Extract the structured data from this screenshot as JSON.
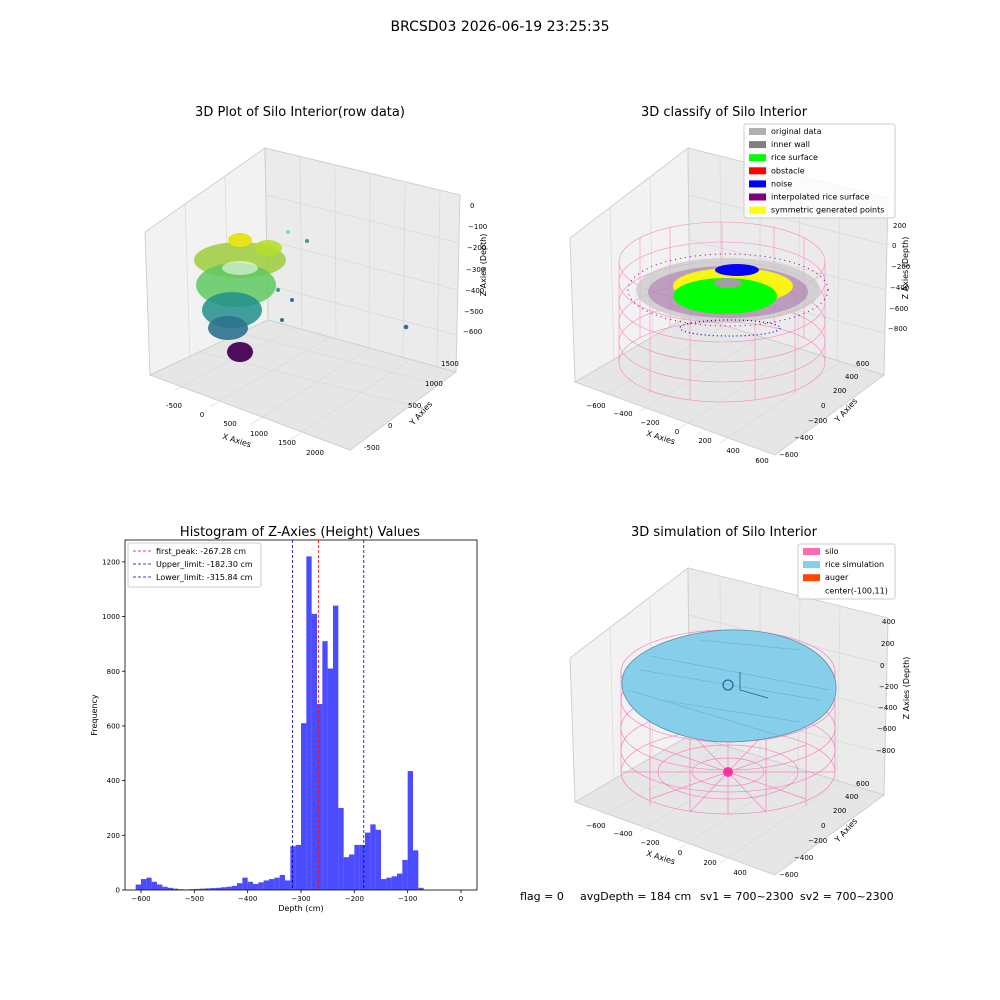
{
  "figure": {
    "suptitle": "BRCSD03 2026-06-19 23:25:35",
    "footer": {
      "flag": "flag = 0",
      "avg_depth": "avgDepth = 184 cm",
      "sv1": "sv1 = 700~2300",
      "sv2": "sv2 = 700~2300"
    }
  },
  "panels": {
    "raw": {
      "title": "3D Plot of Silo Interior(row data)",
      "xlabel": "X Axies",
      "ylabel": "Y Axies",
      "zlabel": "Z Axies (Depth)",
      "xticks": [
        "-500",
        "0",
        "500",
        "1000",
        "1500",
        "2000"
      ],
      "yticks": [
        "-500",
        "0",
        "500",
        "1000",
        "1500"
      ],
      "zticks": [
        "0",
        "−100",
        "−200",
        "−300",
        "−400",
        "−500",
        "−600"
      ]
    },
    "classify": {
      "title": "3D classify of Silo Interior",
      "xlabel": "X Axies",
      "ylabel": "Y Axies",
      "zlabel": "Z Axies (Depth)",
      "xticks": [
        "−600",
        "−400",
        "−200",
        "0",
        "200",
        "400",
        "600"
      ],
      "yticks": [
        "−600",
        "−400",
        "−200",
        "0",
        "200",
        "400",
        "600"
      ],
      "zticks": [
        "200",
        "0",
        "−200",
        "−400",
        "−600",
        "−800"
      ],
      "legend": [
        {
          "label": "original data",
          "color": "#b0b0b0"
        },
        {
          "label": "inner wall",
          "color": "#808080"
        },
        {
          "label": "rice surface",
          "color": "#00ff00"
        },
        {
          "label": "obstacle",
          "color": "#ff0000"
        },
        {
          "label": "noise",
          "color": "#0000ff"
        },
        {
          "label": "interpolated rice surface",
          "color": "#800080"
        },
        {
          "label": "symmetric generated points",
          "color": "#ffff00"
        }
      ]
    },
    "simulation": {
      "title": "3D simulation of Silo Interior",
      "xlabel": "X Axies",
      "ylabel": "Y Axies",
      "zlabel": "Z Axies (Depth)",
      "xticks": [
        "−600",
        "−400",
        "−200",
        "0",
        "200",
        "400"
      ],
      "yticks": [
        "−600",
        "−400",
        "−200",
        "0",
        "200",
        "400",
        "600"
      ],
      "zticks": [
        "400",
        "200",
        "0",
        "−200",
        "−400",
        "−600",
        "−800"
      ],
      "legend": [
        {
          "label": "silo",
          "color": "#ff69b4"
        },
        {
          "label": "rice simulation",
          "color": "#87ceeb"
        },
        {
          "label": "auger",
          "color": "#ff4500"
        },
        {
          "label": "center(-100,11)",
          "color": "none"
        }
      ]
    }
  },
  "chart_data": {
    "type": "bar",
    "title": "Histogram of Z-Axies (Height) Values",
    "xlabel": "Depth (cm)",
    "ylabel": "Frequency",
    "xlim": [
      -630,
      30
    ],
    "ylim": [
      0,
      1280
    ],
    "bar_color": "#0000ff",
    "bar_opacity": 0.7,
    "xticks": [
      -600,
      -500,
      -400,
      -300,
      -200,
      -100,
      0
    ],
    "xtick_labels": [
      "−600",
      "−500",
      "−400",
      "−300",
      "−200",
      "−100",
      "0"
    ],
    "yticks": [
      0,
      200,
      400,
      600,
      800,
      1000,
      1200
    ],
    "bins": [
      [
        -610,
        -600,
        20
      ],
      [
        -600,
        -590,
        40
      ],
      [
        -590,
        -580,
        45
      ],
      [
        -580,
        -570,
        30
      ],
      [
        -570,
        -560,
        20
      ],
      [
        -560,
        -550,
        12
      ],
      [
        -550,
        -540,
        8
      ],
      [
        -540,
        -530,
        5
      ],
      [
        -530,
        -520,
        3
      ],
      [
        -520,
        -510,
        2
      ],
      [
        -510,
        -500,
        3
      ],
      [
        -500,
        -490,
        4
      ],
      [
        -490,
        -480,
        5
      ],
      [
        -480,
        -470,
        6
      ],
      [
        -470,
        -460,
        7
      ],
      [
        -460,
        -450,
        8
      ],
      [
        -450,
        -440,
        10
      ],
      [
        -440,
        -430,
        12
      ],
      [
        -430,
        -420,
        15
      ],
      [
        -420,
        -410,
        25
      ],
      [
        -410,
        -400,
        45
      ],
      [
        -400,
        -390,
        30
      ],
      [
        -390,
        -380,
        22
      ],
      [
        -380,
        -370,
        28
      ],
      [
        -370,
        -360,
        35
      ],
      [
        -360,
        -350,
        40
      ],
      [
        -350,
        -340,
        45
      ],
      [
        -340,
        -330,
        55
      ],
      [
        -330,
        -320,
        35
      ],
      [
        -320,
        -310,
        160
      ],
      [
        -310,
        -300,
        165
      ],
      [
        -300,
        -290,
        610
      ],
      [
        -290,
        -280,
        1220
      ],
      [
        -280,
        -270,
        1010
      ],
      [
        -270,
        -260,
        680
      ],
      [
        -260,
        -250,
        910
      ],
      [
        -250,
        -240,
        810
      ],
      [
        -240,
        -230,
        1040
      ],
      [
        -230,
        -220,
        300
      ],
      [
        -220,
        -210,
        120
      ],
      [
        -210,
        -200,
        130
      ],
      [
        -200,
        -190,
        165
      ],
      [
        -190,
        -180,
        165
      ],
      [
        -180,
        -170,
        210
      ],
      [
        -170,
        -160,
        240
      ],
      [
        -160,
        -150,
        220
      ],
      [
        -150,
        -140,
        40
      ],
      [
        -140,
        -130,
        45
      ],
      [
        -130,
        -120,
        50
      ],
      [
        -120,
        -110,
        60
      ],
      [
        -110,
        -100,
        110
      ],
      [
        -100,
        -90,
        435
      ],
      [
        -90,
        -80,
        145
      ],
      [
        -80,
        -70,
        8
      ]
    ],
    "vlines": [
      {
        "label": "first_peak: -267.28 cm",
        "x": -267.28,
        "color": "#ff0000"
      },
      {
        "label": "Upper_limit: -182.30 cm",
        "x": -182.3,
        "color": "#0000aa"
      },
      {
        "label": "Lower_limit: -315.84 cm",
        "x": -315.84,
        "color": "#0000aa"
      }
    ]
  }
}
